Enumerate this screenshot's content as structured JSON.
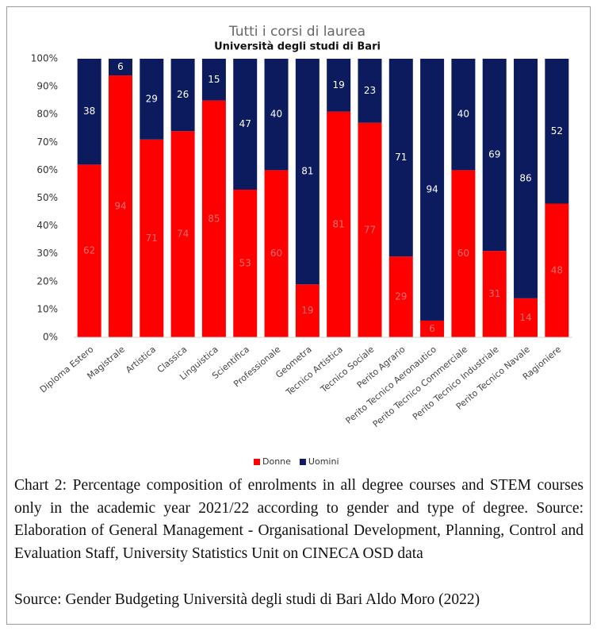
{
  "chart_data": {
    "type": "bar",
    "stacked": true,
    "title": "Tutti i corsi di laurea",
    "subtitle": "Università degli studi di Bari",
    "categories": [
      "Diploma Estero",
      "Magistrale",
      "Artistica",
      "Classica",
      "Linguistica",
      "Scientifica",
      "Professionale",
      "Geometra",
      "Tecnico Artistica",
      "Tecnico Sociale",
      "Perito Agrario",
      "Perito Tecnico Aeronautico",
      "Perito Tecnico Commerciale",
      "Perito Tecnico Industriale",
      "Perito Tecnico Navale",
      "Ragioniere"
    ],
    "series": [
      {
        "name": "Donne",
        "color": "#ff0000",
        "values": [
          62,
          94,
          71,
          74,
          85,
          53,
          60,
          19,
          81,
          77,
          29,
          6,
          60,
          31,
          14,
          48
        ]
      },
      {
        "name": "Uomini",
        "color": "#0c1a5e",
        "values": [
          38,
          6,
          29,
          26,
          15,
          47,
          40,
          81,
          19,
          23,
          71,
          94,
          40,
          69,
          86,
          52
        ]
      }
    ],
    "ylim": [
      0,
      100
    ],
    "yticks": [
      {
        "value": 0,
        "label": "0%"
      },
      {
        "value": 10,
        "label": "10%"
      },
      {
        "value": 20,
        "label": "20%"
      },
      {
        "value": 30,
        "label": "30%"
      },
      {
        "value": 40,
        "label": "40%"
      },
      {
        "value": 50,
        "label": "50%"
      },
      {
        "value": 60,
        "label": "60%"
      },
      {
        "value": 70,
        "label": "70%"
      },
      {
        "value": 80,
        "label": "80%"
      },
      {
        "value": 90,
        "label": "90%"
      },
      {
        "value": 100,
        "label": "100%"
      }
    ],
    "grid": false,
    "legend": "bottom"
  },
  "caption": "Chart 2: Percentage composition of enrolments in all degree courses and STEM courses only in the academic year 2021/22 according to gender and type of degree. Source: Elaboration of General Management - Organisational Development, Planning, Control and Evaluation Staff, University Statistics Unit on CINECA OSD data",
  "source": "Source: Gender Budgeting Università degli studi di Bari Aldo Moro (2022)"
}
